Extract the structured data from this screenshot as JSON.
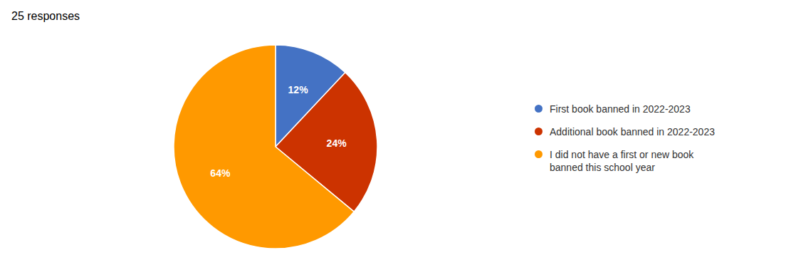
{
  "chart_data": {
    "type": "pie",
    "title": "25 responses",
    "categories": [
      "First book banned in 2022-2023",
      "Additional book banned in 2022-2023",
      "I did not have a first or new book\nbanned this school year"
    ],
    "values": [
      12,
      24,
      64
    ],
    "value_labels": [
      "12%",
      "24%",
      "64%"
    ],
    "colors": [
      "#4472C4",
      "#CC3300",
      "#FF9900"
    ],
    "data_labels": true,
    "legend": "right"
  }
}
